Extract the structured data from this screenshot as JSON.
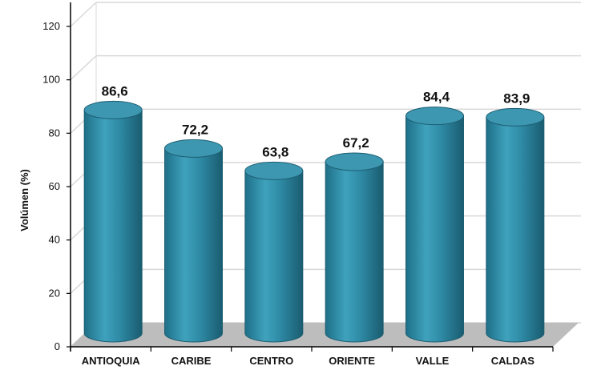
{
  "chart_data": {
    "type": "bar",
    "style": "3d-cylinder",
    "categories": [
      "ANTIOQUIA",
      "CARIBE",
      "CENTRO",
      "ORIENTE",
      "VALLE",
      "CALDAS"
    ],
    "values": [
      86.6,
      72.2,
      63.8,
      67.2,
      84.4,
      83.9
    ],
    "data_labels": [
      "86,6",
      "72,2",
      "63,8",
      "67,2",
      "84,4",
      "83,9"
    ],
    "title": "",
    "xlabel": "",
    "ylabel": "Volúmen (%)",
    "ylim": [
      0,
      120
    ],
    "yticks": [
      0,
      20,
      40,
      60,
      80,
      100,
      120
    ],
    "grid": true,
    "legend": "none",
    "colors": {
      "bar": "#2b8aa6",
      "bar_dark": "#1a5f74",
      "bar_light": "#4fb0c9",
      "top": "#3d97b1",
      "floor": "#bdbdbd",
      "grid": "#d9d9d9"
    }
  }
}
